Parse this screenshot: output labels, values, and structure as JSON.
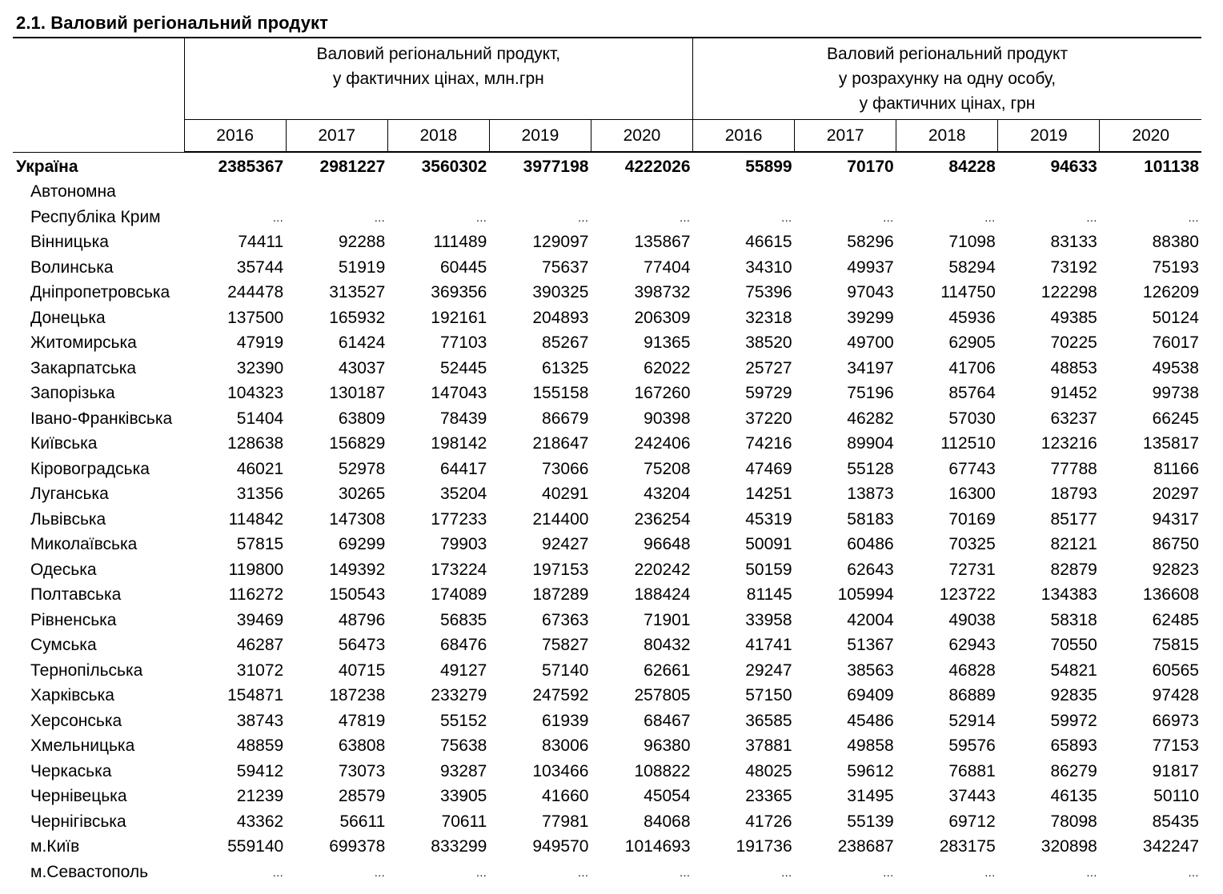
{
  "title": "2.1. Валовий регіональний продукт",
  "header": {
    "group1_line1": "Валовий регіональний продукт,",
    "group1_line2": "у фактичних цінах, млн.грн",
    "group2_line1": "Валовий регіональний продукт",
    "group2_line2": "у розрахунку на одну особу,",
    "group2_line3": "у фактичних цінах, грн",
    "years": [
      "2016",
      "2017",
      "2018",
      "2019",
      "2020",
      "2016",
      "2017",
      "2018",
      "2019",
      "2020"
    ]
  },
  "rows": [
    {
      "name": "Україна",
      "values": [
        "2385367",
        "2981227",
        "3560302",
        "3977198",
        "4222026",
        "55899",
        "70170",
        "84228",
        "94633",
        "101138"
      ],
      "bold": true
    },
    {
      "name": "Автономна",
      "values": [
        "",
        "",
        "",
        "",
        "",
        "",
        "",
        "",
        "",
        ""
      ]
    },
    {
      "name": "Республіка Крим",
      "values": [
        "…",
        "…",
        "…",
        "…",
        "…",
        "…",
        "…",
        "…",
        "…",
        "…"
      ]
    },
    {
      "name": "Вінницька",
      "values": [
        "74411",
        "92288",
        "111489",
        "129097",
        "135867",
        "46615",
        "58296",
        "71098",
        "83133",
        "88380"
      ]
    },
    {
      "name": "Волинська",
      "values": [
        "35744",
        "51919",
        "60445",
        "75637",
        "77404",
        "34310",
        "49937",
        "58294",
        "73192",
        "75193"
      ]
    },
    {
      "name": "Дніпропетровська",
      "values": [
        "244478",
        "313527",
        "369356",
        "390325",
        "398732",
        "75396",
        "97043",
        "114750",
        "122298",
        "126209"
      ]
    },
    {
      "name": "Донецька",
      "values": [
        "137500",
        "165932",
        "192161",
        "204893",
        "206309",
        "32318",
        "39299",
        "45936",
        "49385",
        "50124"
      ]
    },
    {
      "name": "Житомирська",
      "values": [
        "47919",
        "61424",
        "77103",
        "85267",
        "91365",
        "38520",
        "49700",
        "62905",
        "70225",
        "76017"
      ]
    },
    {
      "name": "Закарпатська",
      "values": [
        "32390",
        "43037",
        "52445",
        "61325",
        "62022",
        "25727",
        "34197",
        "41706",
        "48853",
        "49538"
      ]
    },
    {
      "name": "Запорізька",
      "values": [
        "104323",
        "130187",
        "147043",
        "155158",
        "167260",
        "59729",
        "75196",
        "85764",
        "91452",
        "99738"
      ]
    },
    {
      "name": "Івано-Франківська",
      "values": [
        "51404",
        "63809",
        "78439",
        "86679",
        "90398",
        "37220",
        "46282",
        "57030",
        "63237",
        "66245"
      ]
    },
    {
      "name": "Київська",
      "values": [
        "128638",
        "156829",
        "198142",
        "218647",
        "242406",
        "74216",
        "89904",
        "112510",
        "123216",
        "135817"
      ]
    },
    {
      "name": "Кіровоградська",
      "values": [
        "46021",
        "52978",
        "64417",
        "73066",
        "75208",
        "47469",
        "55128",
        "67743",
        "77788",
        "81166"
      ]
    },
    {
      "name": "Луганська",
      "values": [
        "31356",
        "30265",
        "35204",
        "40291",
        "43204",
        "14251",
        "13873",
        "16300",
        "18793",
        "20297"
      ]
    },
    {
      "name": "Львівська",
      "values": [
        "114842",
        "147308",
        "177233",
        "214400",
        "236254",
        "45319",
        "58183",
        "70169",
        "85177",
        "94317"
      ]
    },
    {
      "name": "Миколаївська",
      "values": [
        "57815",
        "69299",
        "79903",
        "92427",
        "96648",
        "50091",
        "60486",
        "70325",
        "82121",
        "86750"
      ]
    },
    {
      "name": "Одеська",
      "values": [
        "119800",
        "149392",
        "173224",
        "197153",
        "220242",
        "50159",
        "62643",
        "72731",
        "82879",
        "92823"
      ]
    },
    {
      "name": "Полтавська",
      "values": [
        "116272",
        "150543",
        "174089",
        "187289",
        "188424",
        "81145",
        "105994",
        "123722",
        "134383",
        "136608"
      ]
    },
    {
      "name": "Рівненська",
      "values": [
        "39469",
        "48796",
        "56835",
        "67363",
        "71901",
        "33958",
        "42004",
        "49038",
        "58318",
        "62485"
      ]
    },
    {
      "name": "Сумська",
      "values": [
        "46287",
        "56473",
        "68476",
        "75827",
        "80432",
        "41741",
        "51367",
        "62943",
        "70550",
        "75815"
      ]
    },
    {
      "name": "Тернопільська",
      "values": [
        "31072",
        "40715",
        "49127",
        "57140",
        "62661",
        "29247",
        "38563",
        "46828",
        "54821",
        "60565"
      ]
    },
    {
      "name": "Харківська",
      "values": [
        "154871",
        "187238",
        "233279",
        "247592",
        "257805",
        "57150",
        "69409",
        "86889",
        "92835",
        "97428"
      ]
    },
    {
      "name": "Херсонська",
      "values": [
        "38743",
        "47819",
        "55152",
        "61939",
        "68467",
        "36585",
        "45486",
        "52914",
        "59972",
        "66973"
      ]
    },
    {
      "name": "Хмельницька",
      "values": [
        "48859",
        "63808",
        "75638",
        "83006",
        "96380",
        "37881",
        "49858",
        "59576",
        "65893",
        "77153"
      ]
    },
    {
      "name": "Черкаська",
      "values": [
        "59412",
        "73073",
        "93287",
        "103466",
        "108822",
        "48025",
        "59612",
        "76881",
        "86279",
        "91817"
      ]
    },
    {
      "name": "Чернівецька",
      "values": [
        "21239",
        "28579",
        "33905",
        "41660",
        "45054",
        "23365",
        "31495",
        "37443",
        "46135",
        "50110"
      ]
    },
    {
      "name": "Чернігівська",
      "values": [
        "43362",
        "56611",
        "70611",
        "77981",
        "84068",
        "41726",
        "55139",
        "69712",
        "78098",
        "85435"
      ]
    },
    {
      "name": "м.Київ",
      "values": [
        "559140",
        "699378",
        "833299",
        "949570",
        "1014693",
        "191736",
        "238687",
        "283175",
        "320898",
        "342247"
      ]
    },
    {
      "name": "м.Севастополь",
      "values": [
        "…",
        "…",
        "…",
        "…",
        "…",
        "…",
        "…",
        "…",
        "…",
        "…"
      ]
    }
  ]
}
